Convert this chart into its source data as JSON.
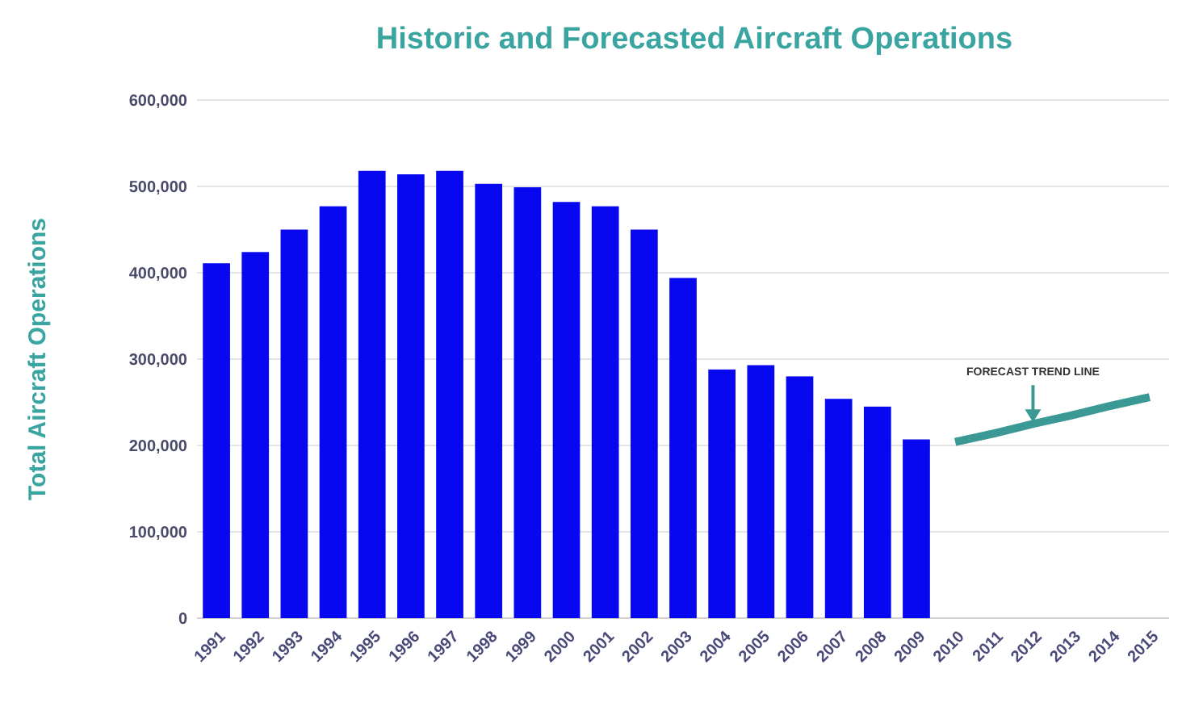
{
  "chart_data": {
    "type": "bar",
    "title": "Historic and Forecasted Aircraft Operations",
    "ylabel": "Total Aircraft Operations",
    "categories": [
      "1991",
      "1992",
      "1993",
      "1994",
      "1995",
      "1996",
      "1997",
      "1998",
      "1999",
      "2000",
      "2001",
      "2002",
      "2003",
      "2004",
      "2005",
      "2006",
      "2007",
      "2008",
      "2009",
      "2010",
      "2011",
      "2012",
      "2013",
      "2014",
      "2015"
    ],
    "series": [
      {
        "color": "#0808f0",
        "values": [
          411000,
          424000,
          450000,
          477000,
          518000,
          514000,
          518000,
          503000,
          499000,
          482000,
          477000,
          450000,
          394000,
          288000,
          293000,
          280000,
          254000,
          245000,
          207000,
          null,
          null,
          null,
          null,
          null,
          null
        ]
      },
      {
        "type": "line",
        "color": "#3a9994",
        "values": [
          null,
          null,
          null,
          null,
          null,
          null,
          null,
          null,
          null,
          null,
          null,
          null,
          null,
          null,
          null,
          null,
          null,
          null,
          null,
          204000,
          214000,
          225000,
          235000,
          246000,
          256000
        ]
      }
    ],
    "ylim": [
      0,
      600000
    ],
    "yticks": [
      {
        "value": 0,
        "label": "0"
      },
      {
        "value": 100000,
        "label": "100,000"
      },
      {
        "value": 200000,
        "label": "200,000"
      },
      {
        "value": 300000,
        "label": "300,000"
      },
      {
        "value": 400000,
        "label": "400,000"
      },
      {
        "value": 500000,
        "label": "500,000"
      },
      {
        "value": 600000,
        "label": "600,000"
      }
    ],
    "grid": "y",
    "annotations": [
      {
        "text": "FORECAST TREND LINE",
        "x": "2012",
        "y": 225000
      }
    ]
  }
}
